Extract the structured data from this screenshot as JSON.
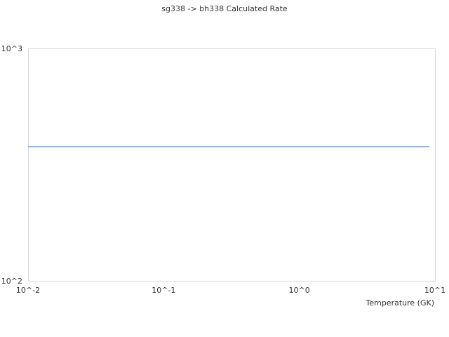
{
  "chart_data": {
    "type": "line",
    "title": "sg338 -> bh338 Calculated Rate",
    "xlabel": "Temperature (GK)",
    "ylabel": "",
    "x_scale": "log",
    "y_scale": "log",
    "xlim": [
      0.01,
      10
    ],
    "ylim": [
      100,
      1000
    ],
    "x_ticks": [
      "10^-2",
      "10^-1",
      "10^0",
      "10^1"
    ],
    "y_ticks": [
      "10^2",
      "10^3"
    ],
    "grid": false,
    "series": [
      {
        "color": "#5b9bd5",
        "x": [
          0.01,
          9.1
        ],
        "y": [
          378,
          378
        ]
      }
    ]
  }
}
